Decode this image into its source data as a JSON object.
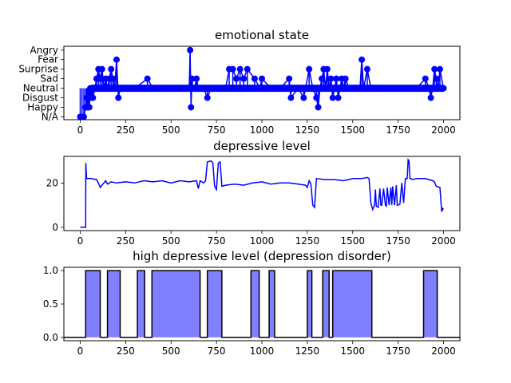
{
  "chart_data": [
    {
      "type": "line",
      "title": "emotional state",
      "xlim": [
        -90,
        2090
      ],
      "xticks": [
        0,
        250,
        500,
        750,
        1000,
        1250,
        1500,
        1750,
        2000
      ],
      "ylim": [
        -0.3,
        7.4
      ],
      "ytick_labels": [
        "N/A",
        "Happy",
        "Disgust",
        "Neutral",
        "Sad",
        "Surprise",
        "Fear",
        "Angry"
      ],
      "line_color": "#0000ff",
      "marker": "circle",
      "baseline_category": "Neutral",
      "series": [
        {
          "x": [
            0,
            10,
            20,
            30,
            35,
            40,
            45,
            50,
            55,
            60,
            65,
            70,
            80,
            90,
            100,
            110,
            120,
            130,
            140,
            150,
            160,
            170,
            180,
            190,
            200,
            210,
            220,
            230,
            250,
            300,
            370,
            400,
            450,
            500,
            550,
            600,
            605,
            610,
            615,
            620,
            625,
            630,
            640,
            650,
            660,
            680,
            700,
            720,
            740,
            760,
            800,
            820,
            840,
            860,
            880,
            900,
            920,
            960,
            990,
            1000,
            1050,
            1100,
            1150,
            1160,
            1200,
            1230,
            1240,
            1260,
            1280,
            1300,
            1310,
            1320,
            1330,
            1340,
            1350,
            1360,
            1370,
            1380,
            1390,
            1400,
            1410,
            1420,
            1430,
            1440,
            1450,
            1460,
            1480,
            1500,
            1520,
            1540,
            1550,
            1560,
            1580,
            1600,
            1650,
            1700,
            1750,
            1800,
            1850,
            1900,
            1920,
            1930,
            1940,
            1950,
            1960,
            1970,
            1980,
            2000
          ],
          "y": [
            0,
            0,
            0,
            1,
            2,
            1,
            2,
            1,
            3,
            2,
            3,
            2,
            3,
            4,
            5,
            4,
            5,
            3,
            4,
            3,
            4,
            5,
            4,
            3,
            6,
            2,
            3,
            3,
            3,
            3,
            4,
            3,
            3,
            3,
            3,
            3,
            7,
            1,
            4,
            3,
            3,
            3,
            4,
            3,
            3,
            3,
            2,
            3,
            3,
            3,
            3,
            5,
            5,
            4,
            5,
            4,
            5,
            4,
            3,
            4,
            3,
            3,
            4,
            2,
            3,
            2,
            3,
            5,
            3,
            2,
            1,
            3,
            4,
            5,
            3,
            5,
            3,
            4,
            2,
            3,
            4,
            2,
            3,
            4,
            3,
            4,
            3,
            3,
            3,
            3,
            6,
            3,
            5,
            3,
            3,
            3,
            3,
            3,
            3,
            4,
            3,
            2,
            3,
            5,
            4,
            3,
            5,
            3
          ]
        }
      ]
    },
    {
      "type": "line",
      "title": "depressive level",
      "xlim": [
        -90,
        2090
      ],
      "xticks": [
        0,
        250,
        500,
        750,
        1000,
        1250,
        1500,
        1750,
        2000
      ],
      "ylim": [
        -1.5,
        32
      ],
      "yticks": [
        0,
        20
      ],
      "line_color": "#0000ff",
      "series": [
        {
          "x": [
            0,
            30,
            31,
            35,
            40,
            60,
            90,
            100,
            110,
            140,
            150,
            170,
            200,
            250,
            300,
            350,
            400,
            450,
            500,
            550,
            600,
            640,
            650,
            660,
            680,
            690,
            700,
            720,
            730,
            740,
            750,
            760,
            770,
            780,
            800,
            850,
            900,
            950,
            1000,
            1050,
            1100,
            1150,
            1200,
            1240,
            1250,
            1260,
            1270,
            1280,
            1290,
            1300,
            1350,
            1400,
            1450,
            1500,
            1550,
            1580,
            1590,
            1600,
            1610,
            1620,
            1625,
            1630,
            1640,
            1650,
            1655,
            1660,
            1670,
            1680,
            1685,
            1690,
            1700,
            1710,
            1715,
            1720,
            1730,
            1740,
            1745,
            1750,
            1760,
            1770,
            1780,
            1790,
            1800,
            1805,
            1810,
            1815,
            1820,
            1830,
            1850,
            1900,
            1940,
            1950,
            1960,
            1980,
            1990,
            1995,
            2000
          ],
          "y": [
            0,
            0,
            29,
            22,
            22,
            22,
            21.5,
            20,
            18,
            21,
            19.5,
            20.5,
            20,
            20.5,
            20,
            21,
            20.5,
            21,
            20,
            21,
            20.5,
            21,
            17.5,
            21,
            20,
            21,
            29.5,
            30,
            29,
            18.5,
            17,
            29,
            29.5,
            18.5,
            19,
            19.5,
            19,
            20,
            20.5,
            19.5,
            20,
            20,
            19.5,
            19,
            18,
            21,
            19.5,
            10,
            9,
            22,
            21.5,
            21.5,
            21,
            22,
            22,
            22.5,
            22,
            11,
            8,
            10,
            17,
            9.5,
            9,
            17.5,
            10,
            10,
            17.5,
            10,
            9.5,
            18,
            10,
            18,
            10,
            18.5,
            10,
            19,
            10,
            10,
            10.5,
            20,
            11,
            22,
            22,
            30.5,
            30,
            22,
            22,
            21.5,
            22,
            22,
            21,
            20.5,
            18.5,
            18,
            7,
            8.5,
            8
          ]
        }
      ]
    },
    {
      "type": "area",
      "title": "high depressive level (depression disorder)",
      "xlim": [
        -90,
        2090
      ],
      "xticks": [
        0,
        250,
        500,
        750,
        1000,
        1250,
        1500,
        1750,
        2000
      ],
      "ylim": [
        -0.05,
        1.05
      ],
      "yticks": [
        0.0,
        0.5,
        1.0
      ],
      "yticklabels": [
        "0.0",
        "0.5",
        "1.0"
      ],
      "fill_color": "#8080ff",
      "edge_color": "#000000",
      "intervals": [
        [
          30,
          110
        ],
        [
          150,
          220
        ],
        [
          315,
          355
        ],
        [
          395,
          660
        ],
        [
          700,
          780
        ],
        [
          940,
          985
        ],
        [
          1040,
          1070
        ],
        [
          1250,
          1275
        ],
        [
          1335,
          1370
        ],
        [
          1390,
          1605
        ],
        [
          1890,
          1965
        ]
      ]
    }
  ]
}
